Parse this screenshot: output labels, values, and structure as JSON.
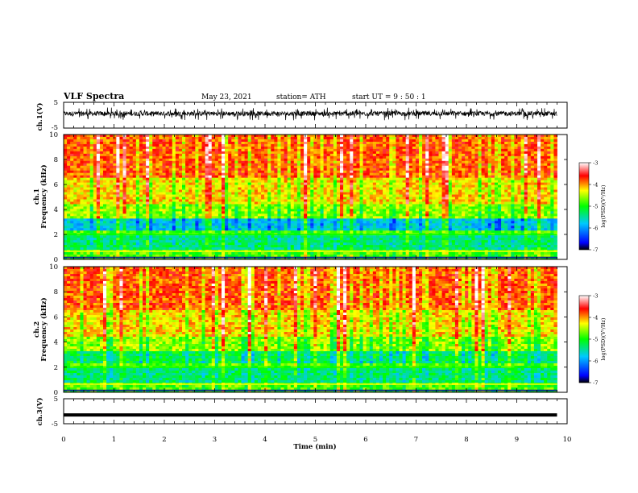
{
  "header": {
    "title": "VLF Spectra",
    "date": "May 23, 2021",
    "station": "station= ATH",
    "start": "start  UT =   9 : 50 : 1"
  },
  "chart_data": [
    {
      "type": "line",
      "title": "",
      "ylabel": "ch.1(V)",
      "ylim": [
        -5,
        5
      ],
      "yticks": [
        "5",
        "-5"
      ],
      "xlim": [
        0,
        10
      ],
      "series": [
        {
          "name": "",
          "x": [
            0,
            9.8
          ],
          "y_range": [
            -2,
            3
          ]
        }
      ],
      "color": "#000000"
    },
    {
      "type": "heatmap",
      "title": "",
      "ylabel": "Frequency  (kHz)",
      "channel_label": "ch.1",
      "ylim": [
        0,
        10
      ],
      "yticks": [
        "0",
        "2",
        "4",
        "6",
        "8",
        "10"
      ],
      "xlim": [
        0,
        10
      ],
      "data_x_end": 9.8,
      "colorbar": {
        "label": "log(PSD)(V²/Hz)",
        "range": [
          -7,
          -3
        ],
        "ticks": [
          "-3",
          "-4",
          "-5",
          "-6",
          "-7"
        ],
        "colors": [
          "#000000",
          "#0000ff",
          "#00c8ff",
          "#00ff00",
          "#ffff00",
          "#ff0000",
          "#ffffff"
        ]
      }
    },
    {
      "type": "heatmap",
      "title": "",
      "ylabel": "Frequency  (kHz)",
      "channel_label": "ch.2",
      "ylim": [
        0,
        10
      ],
      "yticks": [
        "0",
        "2",
        "4",
        "6",
        "8",
        "10"
      ],
      "xlim": [
        0,
        10
      ],
      "data_x_end": 9.8,
      "colorbar": {
        "label": "log(PSD)(V²/Hz)",
        "range": [
          -7,
          -3
        ],
        "ticks": [
          "-3",
          "-4",
          "-5",
          "-6",
          "-7"
        ],
        "colors": [
          "#000000",
          "#0000ff",
          "#00c8ff",
          "#00ff00",
          "#ffff00",
          "#ff0000",
          "#ffffff"
        ]
      }
    },
    {
      "type": "line",
      "title": "",
      "ylabel": "ch.3(V)",
      "ylim": [
        -5,
        5
      ],
      "yticks": [
        "5",
        "-5"
      ],
      "xlim": [
        0,
        10
      ],
      "xlabel": "Time  (min)",
      "xticks": [
        "0",
        "1",
        "2",
        "3",
        "4",
        "5",
        "6",
        "7",
        "8",
        "9",
        "10"
      ],
      "series": [
        {
          "name": "",
          "x": [
            0,
            9.8
          ],
          "y": [
            -1.5,
            -1.5
          ]
        }
      ],
      "color": "#000000"
    }
  ]
}
